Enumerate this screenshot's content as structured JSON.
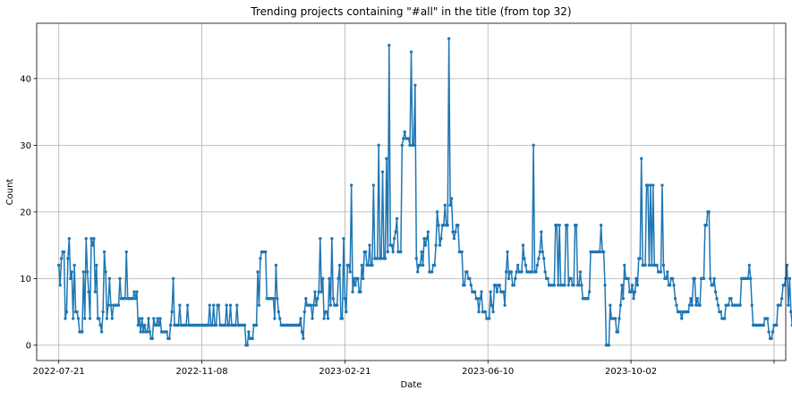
{
  "chart_data": {
    "type": "line",
    "title": "Trending projects containing \"#all\" in the title (from top 32)",
    "xlabel": "Date",
    "ylabel": "Count",
    "x_start": "2022-07-21",
    "x_end": "2024-01-16",
    "xlim": [
      "2022-07-04",
      "2024-01-31"
    ],
    "ylim": [
      -2.3,
      48.3
    ],
    "x_ticks": [
      {
        "date": "2022-07-21",
        "label": "2022-07-21"
      },
      {
        "date": "2022-11-08",
        "label": "2022-11-08"
      },
      {
        "date": "2023-02-26",
        "label": "2023-02-21"
      },
      {
        "date": "2023-06-16",
        "label": "2023-06-10"
      },
      {
        "date": "2023-10-04",
        "label": "2023-10-02"
      },
      {
        "date": "2024-01-22",
        "label": ""
      }
    ],
    "y_ticks": [
      0,
      10,
      20,
      30,
      40
    ],
    "grid": true,
    "color": "#1f77b4",
    "series": [
      {
        "values": [
          12,
          9,
          13,
          14,
          14,
          4,
          5,
          13,
          16,
          10,
          11,
          4,
          12,
          5,
          5,
          4,
          2,
          2,
          2,
          11,
          4,
          16,
          11,
          8,
          4,
          16,
          15,
          16,
          8,
          12,
          4,
          4,
          3,
          2,
          5,
          14,
          11,
          4,
          6,
          10,
          6,
          4,
          6,
          6,
          6,
          6,
          6,
          10,
          7,
          7,
          7,
          7,
          14,
          7,
          7,
          7,
          7,
          7,
          8,
          7,
          8,
          3,
          4,
          2,
          4,
          2,
          3,
          2,
          2,
          4,
          2,
          1,
          1,
          4,
          3,
          3,
          4,
          3,
          4,
          2,
          2,
          2,
          2,
          2,
          1,
          1,
          3,
          5,
          10,
          3,
          3,
          3,
          3,
          6,
          3,
          3,
          3,
          3,
          3,
          6,
          3,
          3,
          3,
          3,
          3,
          3,
          3,
          3,
          3,
          3,
          3,
          3,
          3,
          3,
          3,
          3,
          6,
          3,
          3,
          6,
          3,
          3,
          6,
          6,
          3,
          3,
          3,
          3,
          3,
          6,
          3,
          3,
          6,
          3,
          3,
          3,
          3,
          6,
          3,
          3,
          3,
          3,
          3,
          3,
          0,
          0,
          2,
          1,
          1,
          1,
          3,
          3,
          3,
          11,
          6,
          13,
          14,
          14,
          14,
          14,
          7,
          7,
          7,
          7,
          7,
          7,
          4,
          12,
          7,
          5,
          4,
          3,
          3,
          3,
          3,
          3,
          3,
          3,
          3,
          3,
          3,
          3,
          3,
          3,
          3,
          3,
          4,
          2,
          1,
          5,
          7,
          6,
          6,
          6,
          6,
          4,
          6,
          8,
          6,
          7,
          8,
          16,
          8,
          10,
          4,
          5,
          5,
          4,
          10,
          6,
          16,
          7,
          6,
          6,
          6,
          10,
          12,
          4,
          4,
          16,
          7,
          5,
          12,
          12,
          11,
          24,
          8,
          10,
          9,
          10,
          10,
          8,
          8,
          12,
          10,
          14,
          14,
          12,
          12,
          15,
          12,
          12,
          24,
          13,
          13,
          13,
          30,
          13,
          13,
          26,
          13,
          13,
          28,
          14,
          45,
          15,
          15,
          14,
          16,
          17,
          19,
          14,
          14,
          14,
          30,
          31,
          32,
          31,
          31,
          31,
          30,
          44,
          30,
          30,
          39,
          13,
          11,
          12,
          12,
          14,
          12,
          16,
          15,
          16,
          17,
          11,
          11,
          11,
          12,
          12,
          15,
          20,
          18,
          15,
          16,
          18,
          18,
          21,
          18,
          18,
          46,
          21,
          22,
          17,
          16,
          17,
          18,
          18,
          14,
          14,
          14,
          9,
          9,
          11,
          11,
          10,
          10,
          9,
          8,
          8,
          8,
          7,
          7,
          5,
          7,
          8,
          5,
          5,
          5,
          4,
          4,
          4,
          8,
          6,
          5,
          9,
          9,
          8,
          9,
          9,
          8,
          8,
          8,
          6,
          11,
          14,
          10,
          11,
          11,
          9,
          9,
          10,
          11,
          12,
          11,
          11,
          11,
          15,
          13,
          12,
          11,
          11,
          11,
          11,
          11,
          30,
          11,
          11,
          12,
          13,
          14,
          17,
          14,
          13,
          11,
          10,
          10,
          9,
          9,
          9,
          9,
          9,
          18,
          18,
          9,
          18,
          9,
          9,
          9,
          9,
          18,
          18,
          9,
          10,
          10,
          9,
          9,
          18,
          18,
          9,
          9,
          11,
          9,
          7,
          7,
          7,
          7,
          7,
          8,
          14,
          14,
          14,
          14,
          14,
          14,
          14,
          14,
          18,
          14,
          14,
          9,
          0,
          0,
          0,
          6,
          4,
          4,
          4,
          4,
          2,
          2,
          4,
          6,
          9,
          7,
          12,
          10,
          10,
          10,
          8,
          8,
          9,
          7,
          8,
          10,
          9,
          13,
          13,
          28,
          12,
          12,
          12,
          24,
          24,
          12,
          24,
          12,
          24,
          12,
          12,
          12,
          11,
          11,
          11,
          24,
          12,
          10,
          10,
          11,
          9,
          9,
          10,
          10,
          9,
          7,
          6,
          5,
          5,
          5,
          4,
          5,
          5,
          5,
          5,
          5,
          6,
          7,
          6,
          10,
          10,
          6,
          7,
          6,
          6,
          10,
          10,
          10,
          18,
          18,
          20,
          20,
          10,
          9,
          9,
          10,
          8,
          7,
          6,
          5,
          5,
          4,
          4,
          4,
          6,
          6,
          6,
          7,
          7,
          6,
          6,
          6,
          6,
          6,
          6,
          6,
          10,
          10,
          10,
          10,
          10,
          10,
          12,
          10,
          6,
          3,
          3,
          3,
          3,
          3,
          3,
          3,
          3,
          3,
          4,
          4,
          4,
          2,
          1,
          1,
          2,
          3,
          3,
          3,
          6,
          6,
          6,
          7,
          9,
          9,
          10,
          12,
          6,
          10,
          5,
          3,
          3,
          1,
          2,
          4,
          3,
          5,
          6,
          7,
          3,
          1,
          2,
          3,
          2,
          2,
          2,
          3,
          4,
          4,
          3,
          6,
          6,
          6,
          6,
          5,
          3,
          3,
          6,
          8,
          10,
          10,
          10,
          5,
          6,
          8,
          9,
          10,
          10,
          10,
          6,
          6,
          8,
          9,
          10,
          10,
          10,
          10,
          10,
          10,
          10,
          9,
          9,
          15,
          10,
          6,
          4,
          12,
          9,
          8,
          3,
          2,
          2,
          3,
          6,
          12,
          5,
          6,
          6,
          5,
          5,
          5,
          5,
          5,
          6,
          5,
          6,
          6,
          6,
          6,
          8,
          10,
          10,
          6,
          9,
          8,
          5,
          10,
          10,
          9,
          8,
          6,
          6,
          6,
          8,
          12,
          6,
          6,
          6,
          8,
          9,
          10,
          10,
          10,
          10,
          5,
          9,
          10,
          10,
          7,
          3,
          3,
          2,
          2,
          1,
          2,
          3,
          2,
          2,
          2,
          2,
          2,
          2,
          2,
          3,
          3,
          3,
          3,
          2,
          2,
          2,
          3,
          4,
          5,
          6,
          2,
          2,
          2,
          2,
          3,
          2,
          2,
          2,
          2,
          2,
          3,
          4,
          2,
          3,
          4,
          4,
          4,
          3,
          3,
          3,
          3,
          3,
          3,
          2,
          3,
          3,
          2,
          3,
          4,
          4,
          4,
          6,
          3,
          2,
          2,
          2,
          3,
          3,
          3,
          3,
          4,
          4,
          4,
          7,
          10,
          12,
          12,
          12,
          10,
          10,
          7,
          6,
          7,
          7,
          7,
          7,
          7,
          6,
          12,
          18,
          7,
          6,
          6,
          6,
          7,
          12,
          19,
          7,
          15,
          12,
          10,
          20,
          6,
          11,
          40,
          20,
          6,
          15,
          17,
          18,
          16,
          16,
          15,
          12,
          12,
          9,
          7,
          12,
          9,
          8,
          7,
          7,
          7,
          6,
          6,
          12,
          12,
          16,
          16,
          8,
          8,
          8,
          8,
          5,
          1,
          1,
          5,
          5,
          5,
          5,
          1,
          1,
          1,
          0,
          0,
          0,
          0,
          0,
          0,
          0,
          0,
          2,
          4,
          5,
          7,
          8,
          10,
          12,
          12,
          5,
          5,
          5,
          6,
          12,
          13,
          5,
          4,
          6,
          5,
          5,
          5,
          5,
          5,
          5,
          5,
          5,
          5,
          5,
          5,
          5,
          5,
          5,
          5,
          5,
          5
        ]
      }
    ]
  }
}
